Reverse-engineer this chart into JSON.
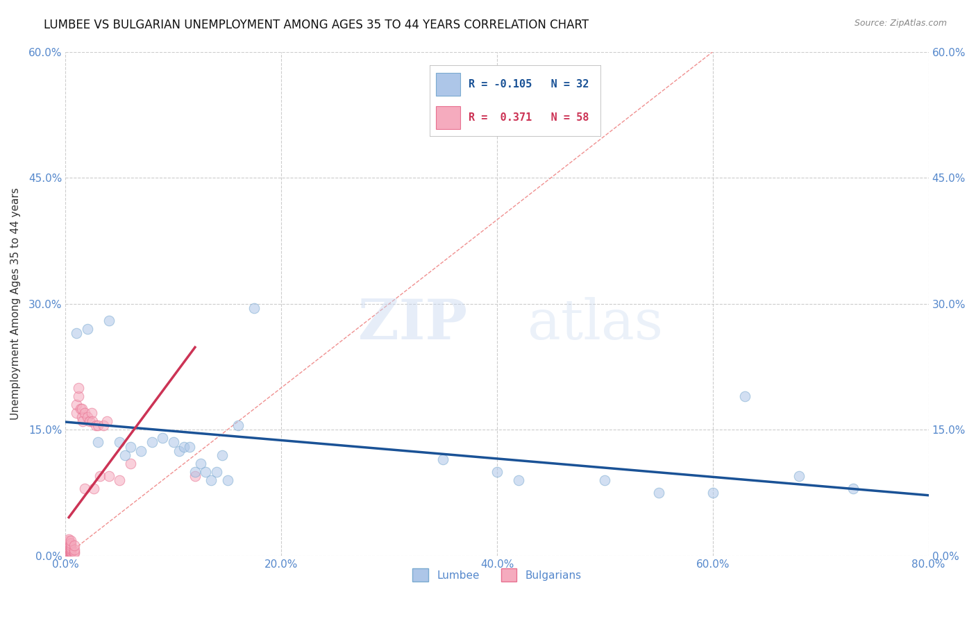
{
  "title": "LUMBEE VS BULGARIAN UNEMPLOYMENT AMONG AGES 35 TO 44 YEARS CORRELATION CHART",
  "source_text": "Source: ZipAtlas.com",
  "ylabel": "Unemployment Among Ages 35 to 44 years",
  "xlim": [
    0.0,
    0.8
  ],
  "ylim": [
    0.0,
    0.6
  ],
  "xticks": [
    0.0,
    0.2,
    0.4,
    0.6,
    0.8
  ],
  "yticks": [
    0.0,
    0.15,
    0.3,
    0.45,
    0.6
  ],
  "xtick_labels": [
    "0.0%",
    "20.0%",
    "40.0%",
    "60.0%",
    "80.0%"
  ],
  "ytick_labels": [
    "0.0%",
    "15.0%",
    "30.0%",
    "45.0%",
    "60.0%"
  ],
  "lumbee_color": "#adc6e8",
  "bulgarian_color": "#f5abbe",
  "lumbee_edge_color": "#7aaad0",
  "bulgarian_edge_color": "#e87090",
  "regression_lumbee_color": "#1a5296",
  "regression_bulgarian_color": "#cc3355",
  "legend_R_lumbee": "R = -0.105",
  "legend_N_lumbee": "N = 32",
  "legend_R_bulgarian": "R =  0.371",
  "legend_N_bulgarian": "N = 58",
  "lumbee_x": [
    0.01,
    0.02,
    0.03,
    0.04,
    0.05,
    0.055,
    0.06,
    0.07,
    0.08,
    0.09,
    0.1,
    0.105,
    0.11,
    0.115,
    0.12,
    0.125,
    0.13,
    0.135,
    0.14,
    0.145,
    0.15,
    0.16,
    0.175,
    0.35,
    0.4,
    0.42,
    0.5,
    0.55,
    0.6,
    0.63,
    0.68,
    0.73
  ],
  "lumbee_y": [
    0.265,
    0.27,
    0.135,
    0.28,
    0.135,
    0.12,
    0.13,
    0.125,
    0.135,
    0.14,
    0.135,
    0.125,
    0.13,
    0.13,
    0.1,
    0.11,
    0.1,
    0.09,
    0.1,
    0.12,
    0.09,
    0.155,
    0.295,
    0.115,
    0.1,
    0.09,
    0.09,
    0.075,
    0.075,
    0.19,
    0.095,
    0.08
  ],
  "bulgarian_x": [
    0.003,
    0.003,
    0.003,
    0.003,
    0.003,
    0.003,
    0.003,
    0.003,
    0.003,
    0.003,
    0.003,
    0.003,
    0.003,
    0.003,
    0.003,
    0.003,
    0.003,
    0.003,
    0.003,
    0.003,
    0.005,
    0.005,
    0.005,
    0.005,
    0.005,
    0.005,
    0.005,
    0.005,
    0.005,
    0.005,
    0.008,
    0.008,
    0.008,
    0.008,
    0.01,
    0.01,
    0.012,
    0.012,
    0.014,
    0.015,
    0.015,
    0.016,
    0.018,
    0.018,
    0.02,
    0.022,
    0.024,
    0.025,
    0.026,
    0.028,
    0.03,
    0.032,
    0.035,
    0.038,
    0.04,
    0.05,
    0.06,
    0.12
  ],
  "bulgarian_y": [
    0.003,
    0.003,
    0.003,
    0.003,
    0.003,
    0.003,
    0.004,
    0.004,
    0.005,
    0.006,
    0.007,
    0.008,
    0.009,
    0.01,
    0.012,
    0.013,
    0.015,
    0.016,
    0.018,
    0.02,
    0.003,
    0.004,
    0.005,
    0.006,
    0.007,
    0.008,
    0.01,
    0.012,
    0.015,
    0.018,
    0.003,
    0.005,
    0.007,
    0.012,
    0.17,
    0.18,
    0.19,
    0.2,
    0.175,
    0.165,
    0.175,
    0.16,
    0.17,
    0.08,
    0.165,
    0.16,
    0.17,
    0.16,
    0.08,
    0.155,
    0.155,
    0.095,
    0.155,
    0.16,
    0.095,
    0.09,
    0.11,
    0.095
  ],
  "marker_size": 110,
  "alpha": 0.55,
  "grid_color": "#cccccc",
  "axis_color": "#5588cc",
  "background_color": "#ffffff",
  "title_fontsize": 12,
  "axis_label_fontsize": 11,
  "tick_fontsize": 11
}
